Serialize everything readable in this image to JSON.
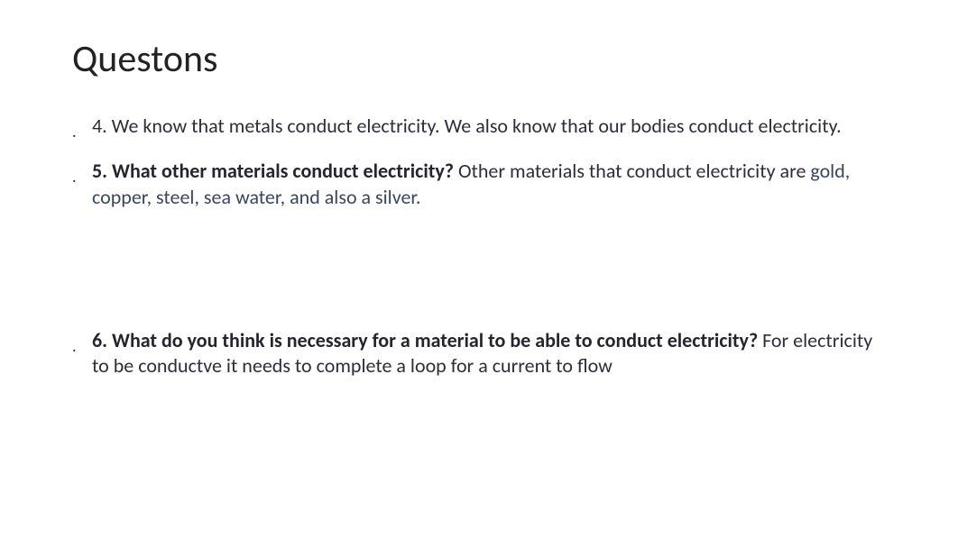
{
  "title": "Questons",
  "items": [
    {
      "parts": [
        {
          "text": "4. We know that metals conduct electricity. We also know that our bodies conduct electricity.",
          "style": "normal"
        }
      ],
      "gap": false
    },
    {
      "parts": [
        {
          "text": "5. What other materials conduct electricity? ",
          "style": "bold"
        },
        {
          "text": "Other materials that conduct electricity are ",
          "style": "normal"
        },
        {
          "text": " gold, copper, steel, sea water, and also a silver.",
          "style": "link"
        }
      ],
      "gap": false
    },
    {
      "parts": [
        {
          "text": "6. What do you think is necessary for a material to be able to conduct electricity? ",
          "style": "bold"
        },
        {
          "text": "For electricity to be conductve it needs to complete a loop for a current to flow",
          "style": "normal"
        }
      ],
      "gap": true
    }
  ],
  "bullet_char": "."
}
